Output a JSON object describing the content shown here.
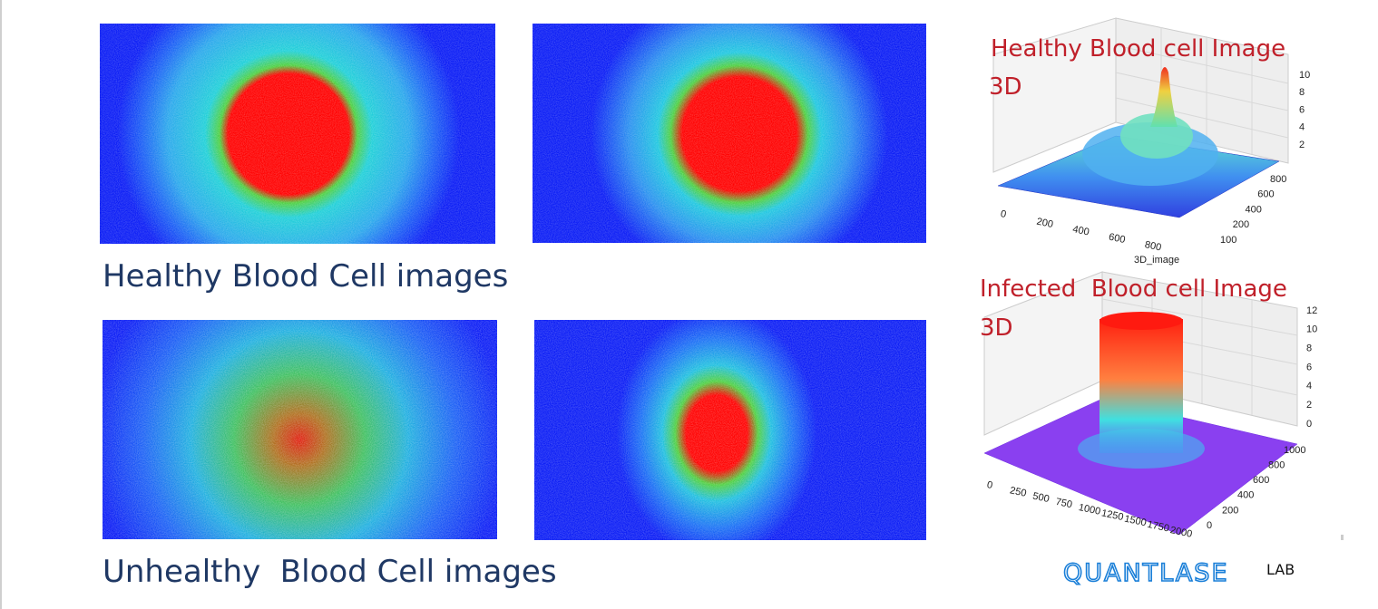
{
  "captions": {
    "healthy": "Healthy Blood Cell images",
    "unhealthy": "Unhealthy  Blood Cell images"
  },
  "plots": [
    {
      "title": "Healthy Blood cell Image",
      "title_line2": "3D",
      "z_ticks": [
        10,
        8,
        6,
        4,
        2
      ],
      "x_ticks": [
        0,
        200,
        400,
        600,
        800
      ],
      "y_ticks": [
        800,
        600,
        400,
        200,
        100
      ],
      "caption": "3D_image"
    },
    {
      "title": "Infected  Blood cell Image",
      "title_line2": "3D",
      "z_ticks": [
        12,
        10,
        8,
        6,
        4,
        2,
        0
      ],
      "x_ticks": [
        0,
        250,
        500,
        750,
        1000,
        1250,
        1500,
        1750,
        2000
      ],
      "y_ticks": [
        1000,
        800,
        600,
        400,
        200,
        0
      ]
    }
  ],
  "logo": {
    "name": "QUANTLASE",
    "suffix": "LAB"
  }
}
